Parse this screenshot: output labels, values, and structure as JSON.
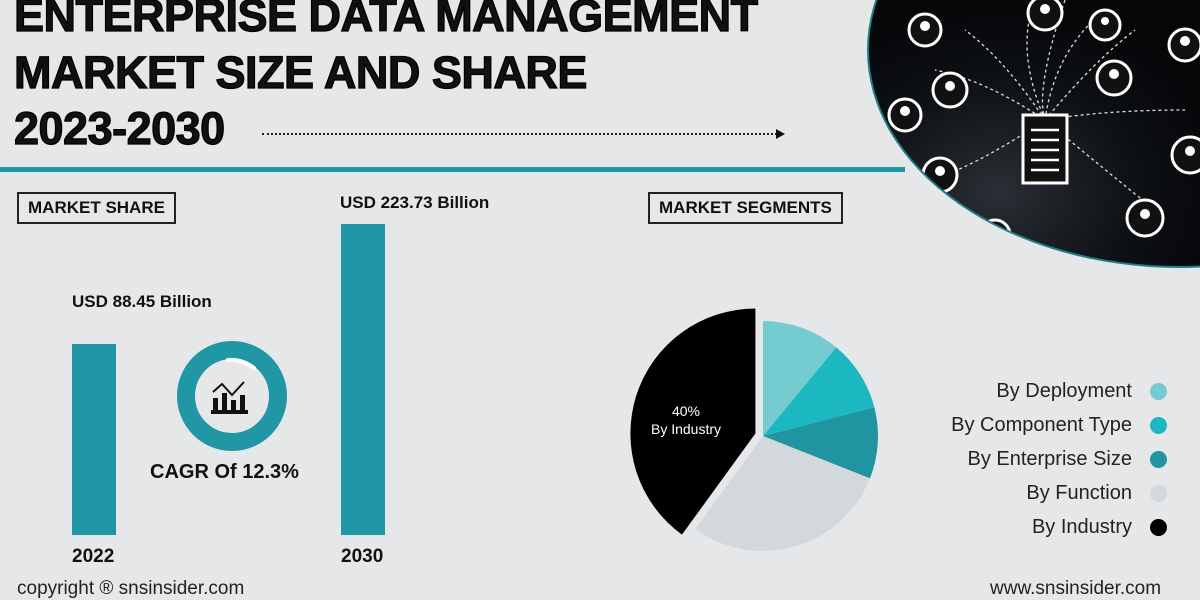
{
  "header": {
    "title_lines": [
      "ENTERPRISE DATA MANAGEMENT",
      "MARKET SIZE AND SHARE",
      "2023-2030"
    ]
  },
  "market_share": {
    "label": "MARKET SHARE",
    "cagr": "CAGR Of 12.3%"
  },
  "market_segments": {
    "label": "MARKET SEGMENTS"
  },
  "footer": {
    "copyright": "copyright ® snsinsider.com",
    "website": "www.snsinsider.com"
  },
  "chart_data": [
    {
      "type": "bar",
      "title": "Market Share",
      "categories": [
        "2022",
        "2030"
      ],
      "values": [
        88.45,
        223.73
      ],
      "unit": "USD Billion",
      "data_labels": [
        "USD 88.45 Billion",
        "USD 223.73 Billion"
      ],
      "xlabel": "",
      "ylabel": ""
    },
    {
      "type": "pie",
      "title": "Market Segments",
      "categories": [
        "By Deployment",
        "By Component Type",
        "By Enterprise Size",
        "By Function",
        "By Industry"
      ],
      "values": [
        11,
        10,
        10,
        29,
        40
      ],
      "colors": [
        "#74ccd1",
        "#1bb8c1",
        "#2094a0",
        "#d3d8dc",
        "#000000"
      ],
      "annotation": {
        "value": "40%",
        "label": "By Industry"
      },
      "legend_placement": "right"
    }
  ]
}
